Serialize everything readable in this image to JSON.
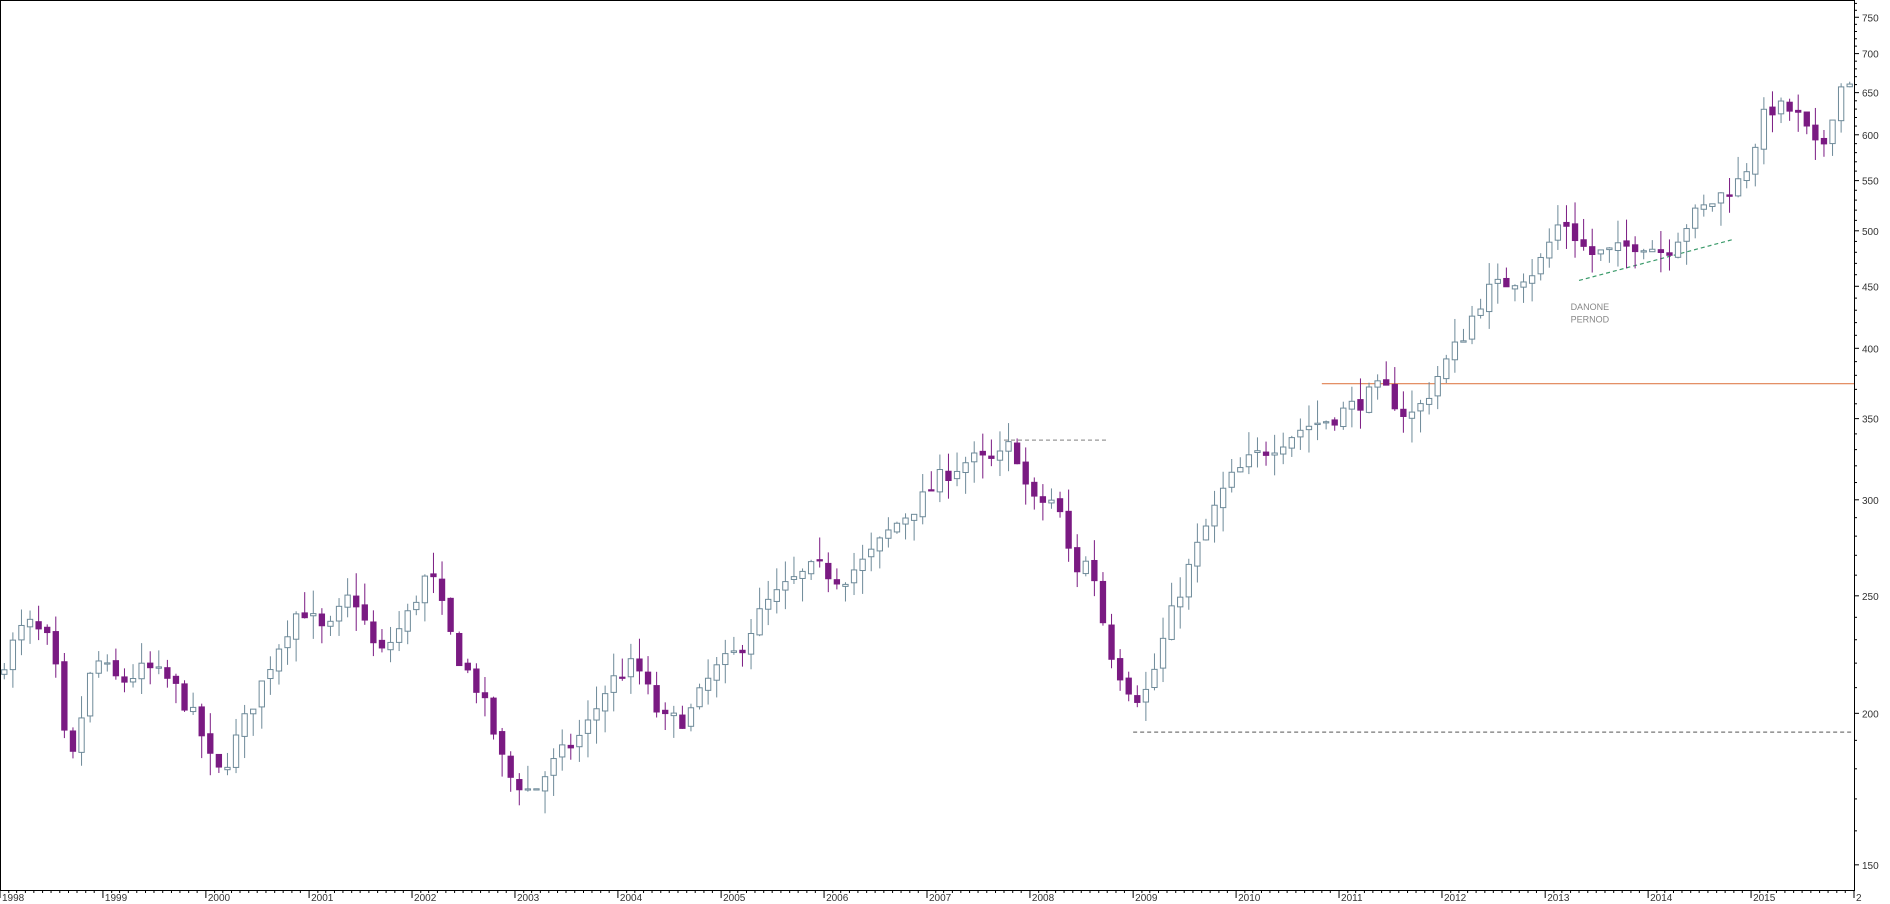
{
  "chart_data": {
    "type": "candlestick",
    "title": "",
    "xlabel": "",
    "ylabel": "",
    "y_scale": "log",
    "ylim": [
      143,
      775
    ],
    "xlim": [
      "1998-01-01",
      "2016-01-01"
    ],
    "x_ticks": [
      "1998",
      "1999",
      "2000",
      "2001",
      "2002",
      "2003",
      "2004",
      "2005",
      "2006",
      "2007",
      "2008",
      "2009",
      "2010",
      "2011",
      "2012",
      "2013",
      "2014",
      "2015",
      "2"
    ],
    "y_ticks": [
      150,
      200,
      250,
      300,
      350,
      400,
      450,
      500,
      550,
      600,
      650,
      700,
      750
    ],
    "grid": false,
    "colors": {
      "up_fill": "#ffffff",
      "up_stroke": "#6e8a99",
      "down_fill": "#7a1a82",
      "down_stroke": "#7a1a82",
      "axis": "#000000",
      "resistance": "#e08050",
      "support": "#777777",
      "trend": "#3a9a6a"
    },
    "annotations": [
      {
        "text": "DANONE",
        "x": "2013-04-01",
        "y": 430
      },
      {
        "text": "PERNOD",
        "x": "2013-04-01",
        "y": 420
      }
    ],
    "levels": [
      {
        "name": "",
        "style": "solid",
        "color": "#e08050",
        "y": 374,
        "x_start": "2010-11-01",
        "x_end": "2016-01-01"
      },
      {
        "name": "",
        "style": "dashed",
        "color": "#999999",
        "y": 336,
        "x_start": "2007-10-01",
        "x_end": "2008-10-01"
      },
      {
        "name": "",
        "style": "dashed",
        "color": "#777777",
        "y": 193,
        "x_start": "2009-01-01",
        "x_end": "2016-01-01"
      }
    ],
    "trend_lines": [
      {
        "style": "dashed",
        "color": "#3a9a6a",
        "x1": "2013-05-01",
        "y1": 455,
        "x2": "2014-11-01",
        "y2": 492
      }
    ],
    "anchors": [
      [
        "1998-01-01",
        218
      ],
      [
        "1998-04-01",
        238
      ],
      [
        "1998-07-01",
        228
      ],
      [
        "1998-09-01",
        177
      ],
      [
        "1998-12-01",
        222
      ],
      [
        "1999-03-01",
        212
      ],
      [
        "1999-06-01",
        218
      ],
      [
        "1999-09-01",
        212
      ],
      [
        "1999-12-01",
        196
      ],
      [
        "2000-02-01",
        178
      ],
      [
        "2000-03-01",
        180
      ],
      [
        "2000-07-01",
        208
      ],
      [
        "2000-10-01",
        232
      ],
      [
        "2000-12-01",
        245
      ],
      [
        "2001-03-01",
        232
      ],
      [
        "2001-06-01",
        252
      ],
      [
        "2001-09-01",
        222
      ],
      [
        "2001-12-01",
        237
      ],
      [
        "2002-03-01",
        262
      ],
      [
        "2002-06-01",
        225
      ],
      [
        "2002-09-01",
        207
      ],
      [
        "2002-12-01",
        178
      ],
      [
        "2003-03-01",
        172
      ],
      [
        "2003-06-01",
        184
      ],
      [
        "2003-09-01",
        193
      ],
      [
        "2003-12-01",
        212
      ],
      [
        "2004-03-01",
        220
      ],
      [
        "2004-06-01",
        197
      ],
      [
        "2004-09-01",
        198
      ],
      [
        "2004-12-01",
        216
      ],
      [
        "2005-03-01",
        225
      ],
      [
        "2005-06-01",
        245
      ],
      [
        "2005-09-01",
        256
      ],
      [
        "2005-12-01",
        264
      ],
      [
        "2006-03-01",
        258
      ],
      [
        "2006-06-01",
        268
      ],
      [
        "2006-09-01",
        285
      ],
      [
        "2006-12-01",
        298
      ],
      [
        "2007-03-01",
        315
      ],
      [
        "2007-06-01",
        324
      ],
      [
        "2007-09-01",
        322
      ],
      [
        "2007-11-01",
        335
      ],
      [
        "2008-01-01",
        298
      ],
      [
        "2008-04-01",
        300
      ],
      [
        "2008-06-01",
        262
      ],
      [
        "2008-08-01",
        268
      ],
      [
        "2008-10-01",
        228
      ],
      [
        "2008-12-01",
        212
      ],
      [
        "2009-02-01",
        205
      ],
      [
        "2009-03-01",
        212
      ],
      [
        "2009-06-01",
        248
      ],
      [
        "2009-09-01",
        280
      ],
      [
        "2009-12-01",
        310
      ],
      [
        "2010-03-01",
        325
      ],
      [
        "2010-06-01",
        335
      ],
      [
        "2010-09-01",
        345
      ],
      [
        "2010-12-01",
        350
      ],
      [
        "2011-03-01",
        360
      ],
      [
        "2011-06-01",
        372
      ],
      [
        "2011-09-01",
        350
      ],
      [
        "2011-11-01",
        362
      ],
      [
        "2011-12-01",
        375
      ],
      [
        "2012-03-01",
        405
      ],
      [
        "2012-06-01",
        445
      ],
      [
        "2012-09-01",
        455
      ],
      [
        "2012-12-01",
        465
      ],
      [
        "2013-03-01",
        512
      ],
      [
        "2013-06-01",
        478
      ],
      [
        "2013-09-01",
        480
      ],
      [
        "2013-12-01",
        490
      ],
      [
        "2014-03-01",
        480
      ],
      [
        "2014-06-01",
        512
      ],
      [
        "2014-09-01",
        532
      ],
      [
        "2014-12-01",
        552
      ],
      [
        "2015-03-01",
        632
      ],
      [
        "2015-06-01",
        628
      ],
      [
        "2015-09-01",
        575
      ],
      [
        "2015-11-01",
        648
      ],
      [
        "2015-12-01",
        668
      ]
    ]
  }
}
